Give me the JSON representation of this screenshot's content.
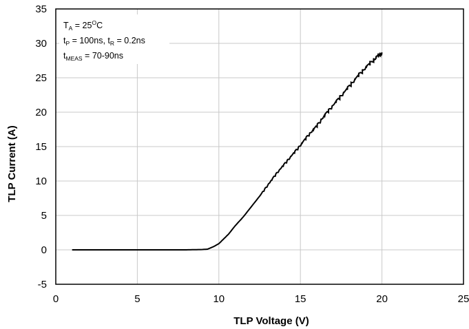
{
  "chart_data": {
    "type": "line",
    "title": "",
    "xlabel": "TLP Voltage (V)",
    "ylabel": "TLP Current (A)",
    "xlim": [
      0,
      25
    ],
    "ylim": [
      -5,
      35
    ],
    "xticks": [
      "0",
      "5",
      "10",
      "15",
      "20",
      "25"
    ],
    "yticks": [
      "-5",
      "0",
      "5",
      "10",
      "15",
      "20",
      "25",
      "30",
      "35"
    ],
    "grid": true,
    "legend": "none",
    "line_color": "#000000",
    "annotation": {
      "line1": {
        "main": "T",
        "sub": "A",
        "rest": " = 25",
        "sup": "O",
        "end": "C"
      },
      "line2": {
        "main": "t",
        "sub": "P",
        "mid": " = 100ns, t",
        "sub2": "R",
        "end": " = 0.2ns"
      },
      "line3": {
        "main": "t",
        "sub": "MEAS",
        "end": " = 70-90ns"
      }
    },
    "series": [
      {
        "x": [
          1.0,
          2.0,
          3.0,
          4.0,
          5.0,
          6.0,
          7.0,
          8.0,
          9.0,
          9.3,
          9.5,
          9.7,
          10.0,
          10.3,
          10.6,
          11.0,
          11.5,
          12.0,
          12.5,
          13.0,
          13.5,
          14.0,
          14.5,
          15.0,
          15.5,
          16.0,
          16.5,
          17.0,
          17.5,
          18.0,
          18.5,
          19.0,
          19.5,
          19.8,
          20.0
        ],
        "y": [
          0.0,
          0.0,
          0.0,
          0.0,
          0.0,
          0.0,
          0.0,
          0.0,
          0.05,
          0.1,
          0.3,
          0.5,
          0.9,
          1.6,
          2.3,
          3.5,
          4.8,
          6.3,
          7.8,
          9.4,
          11.0,
          12.4,
          13.8,
          15.2,
          16.7,
          18.0,
          19.6,
          21.0,
          22.4,
          23.8,
          25.2,
          26.5,
          27.6,
          28.3,
          28.5
        ]
      }
    ]
  }
}
